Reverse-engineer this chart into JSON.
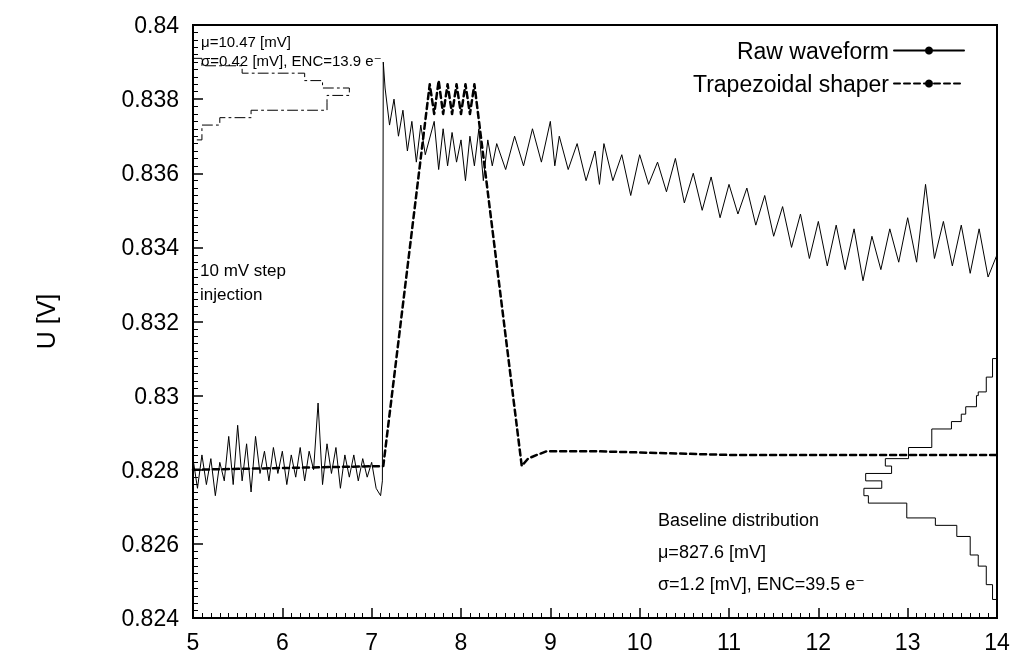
{
  "chart_data": {
    "type": "line",
    "ylabel": "U [V]",
    "xlim": [
      5,
      14
    ],
    "ylim": [
      0.824,
      0.84
    ],
    "xticks": [
      5,
      6,
      7,
      8,
      9,
      10,
      11,
      12,
      13,
      14
    ],
    "yticks": [
      0.824,
      0.826,
      0.828,
      0.83,
      0.832,
      0.834,
      0.836,
      0.838,
      0.84
    ],
    "legend": "top right",
    "marker": "none",
    "annotations": [
      "μ=10.47 [mV]",
      "σ=0.42 [mV], ENC=13.9 e⁻",
      "10 mV step injection",
      "Baseline distribution",
      "μ=827.6 [mV]",
      "σ=1.2 [mV], ENC=39.5 e⁻"
    ],
    "series": [
      {
        "name": "Raw waveform",
        "color": "#000000",
        "line_style": "solid",
        "x": [
          5,
          5.05,
          5.1,
          5.15,
          5.2,
          5.25,
          5.3,
          5.35,
          5.4,
          5.45,
          5.5,
          5.55,
          5.6,
          5.65,
          5.7,
          5.75,
          5.8,
          5.85,
          5.9,
          5.95,
          6,
          6.05,
          6.1,
          6.15,
          6.2,
          6.25,
          6.3,
          6.35,
          6.4,
          6.45,
          6.5,
          6.55,
          6.6,
          6.65,
          6.7,
          6.75,
          6.8,
          6.85,
          6.9,
          6.95,
          7,
          7.05,
          7.1,
          7.12,
          7.13,
          7.15,
          7.2,
          7.25,
          7.3,
          7.35,
          7.4,
          7.45,
          7.5,
          7.55,
          7.6,
          7.7,
          7.75,
          7.8,
          7.85,
          7.9,
          7.95,
          8,
          8.05,
          8.1,
          8.15,
          8.2,
          8.25,
          8.3,
          8.35,
          8.4,
          8.5,
          8.6,
          8.7,
          8.8,
          8.9,
          9,
          9.05,
          9.1,
          9.2,
          9.3,
          9.4,
          9.5,
          9.55,
          9.6,
          9.7,
          9.8,
          9.9,
          10,
          10.1,
          10.2,
          10.3,
          10.4,
          10.5,
          10.6,
          10.7,
          10.8,
          10.9,
          11,
          11.1,
          11.2,
          11.3,
          11.4,
          11.5,
          11.6,
          11.7,
          11.8,
          11.9,
          12,
          12.1,
          12.2,
          12.3,
          12.4,
          12.5,
          12.6,
          12.7,
          12.8,
          12.9,
          13,
          13.1,
          13.2,
          13.3,
          13.4,
          13.5,
          13.6,
          13.7,
          13.8,
          13.9,
          14
        ],
        "values": [
          0.8283,
          0.8275,
          0.8284,
          0.8276,
          0.8283,
          0.8273,
          0.8282,
          0.8277,
          0.8289,
          0.8276,
          0.8292,
          0.8277,
          0.8287,
          0.8274,
          0.8289,
          0.8279,
          0.8285,
          0.8277,
          0.8286,
          0.8279,
          0.8285,
          0.8276,
          0.8284,
          0.8278,
          0.8286,
          0.8277,
          0.8285,
          0.828,
          0.8298,
          0.8276,
          0.8287,
          0.8279,
          0.8286,
          0.8275,
          0.8284,
          0.8278,
          0.8284,
          0.8277,
          0.8283,
          0.8278,
          0.8282,
          0.8275,
          0.8273,
          0.8277,
          0.839,
          0.8383,
          0.8373,
          0.838,
          0.837,
          0.8377,
          0.8366,
          0.8374,
          0.8363,
          0.8373,
          0.8365,
          0.8374,
          0.8361,
          0.8372,
          0.8362,
          0.8371,
          0.8363,
          0.8369,
          0.8358,
          0.837,
          0.8362,
          0.8372,
          0.8358,
          0.8369,
          0.8362,
          0.8368,
          0.8361,
          0.837,
          0.8362,
          0.8372,
          0.8363,
          0.8374,
          0.8362,
          0.837,
          0.8361,
          0.8368,
          0.8358,
          0.8366,
          0.8357,
          0.8368,
          0.8358,
          0.8365,
          0.8354,
          0.8365,
          0.8357,
          0.8363,
          0.8355,
          0.8364,
          0.8352,
          0.836,
          0.835,
          0.8359,
          0.8348,
          0.8357,
          0.8349,
          0.8356,
          0.8346,
          0.8354,
          0.8343,
          0.8351,
          0.834,
          0.8349,
          0.8337,
          0.8347,
          0.8335,
          0.8346,
          0.8334,
          0.8345,
          0.8331,
          0.8343,
          0.8334,
          0.8345,
          0.8336,
          0.8348,
          0.8336,
          0.8357,
          0.8337,
          0.8347,
          0.8335,
          0.8346,
          0.8333,
          0.8345,
          0.8332,
          0.8338
        ]
      },
      {
        "name": "Trapezoidal shaper",
        "color": "#000000",
        "line_style": "dashed",
        "x": [
          5,
          7.13,
          7.65,
          7.7,
          7.75,
          7.8,
          7.85,
          7.9,
          7.95,
          8,
          8.05,
          8.1,
          8.15,
          8.68,
          8.75,
          8.85,
          8.96,
          9.5,
          11,
          14
        ],
        "values": [
          0.828,
          0.8281,
          0.8384,
          0.8376,
          0.8385,
          0.8376,
          0.8384,
          0.8376,
          0.8384,
          0.8376,
          0.8384,
          0.8376,
          0.8384,
          0.8281,
          0.8283,
          0.8284,
          0.8285,
          0.8285,
          0.8284,
          0.8284
        ]
      },
      {
        "color": "#000000",
        "line_style": "dashdot",
        "x": [
          5,
          5.1,
          5.1,
          5.55,
          5.55,
          6.25,
          6.25,
          6.45,
          6.45,
          6.75,
          6.75,
          6.5,
          6.5,
          6.5,
          5.65,
          5.65,
          5.3,
          5.3,
          5.1,
          5.1,
          5
        ],
        "values": [
          0.8391,
          0.8391,
          0.8389,
          0.8389,
          0.8387,
          0.8387,
          0.8385,
          0.8385,
          0.8383,
          0.8383,
          0.8381,
          0.8381,
          0.8379,
          0.8377,
          0.8377,
          0.8375,
          0.8375,
          0.8373,
          0.8373,
          0.8369,
          0.8369
        ]
      },
      {
        "color": "#000000",
        "line_style": "solid",
        "x": [
          14,
          13.95,
          13.95,
          13.88,
          13.88,
          13.79,
          13.79,
          13.77,
          13.77,
          13.65,
          13.65,
          13.6,
          13.6,
          13.49,
          13.49,
          13.27,
          13.27,
          13.01,
          13.01,
          12.75,
          12.75,
          12.82,
          12.82,
          12.53,
          12.53,
          12.71,
          12.71,
          12.51,
          12.51,
          12.56,
          12.56,
          12.99,
          12.99,
          13.31,
          13.31,
          13.55,
          13.55,
          13.7,
          13.7,
          13.79,
          13.79,
          13.88,
          13.88,
          13.95,
          13.95,
          14
        ],
        "values": [
          0.831,
          0.831,
          0.8305,
          0.8305,
          0.8301,
          0.8301,
          0.83,
          0.83,
          0.8297,
          0.8297,
          0.8295,
          0.8295,
          0.8293,
          0.8293,
          0.8291,
          0.8291,
          0.8286,
          0.8286,
          0.8283,
          0.8283,
          0.8281,
          0.8281,
          0.8279,
          0.8279,
          0.8277,
          0.8277,
          0.8275,
          0.8275,
          0.8273,
          0.8273,
          0.8271,
          0.8271,
          0.8267,
          0.8267,
          0.8265,
          0.8265,
          0.8262,
          0.8262,
          0.8257,
          0.8257,
          0.8254,
          0.8254,
          0.8249,
          0.8249,
          0.8245,
          0.8245
        ]
      }
    ]
  }
}
